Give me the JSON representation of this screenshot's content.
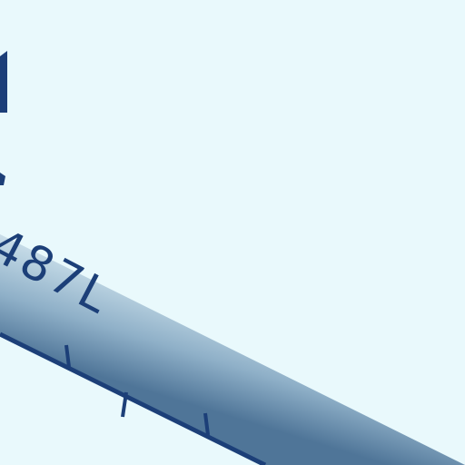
{
  "visible_text": {
    "top_left_partial": "1",
    "registration": "487L"
  },
  "colors": {
    "background": "#e9f9fc",
    "text_and_ticks": "#1c3f78",
    "fuselage_light": "#b5cfde",
    "fuselage_shadow": "#52779a"
  }
}
